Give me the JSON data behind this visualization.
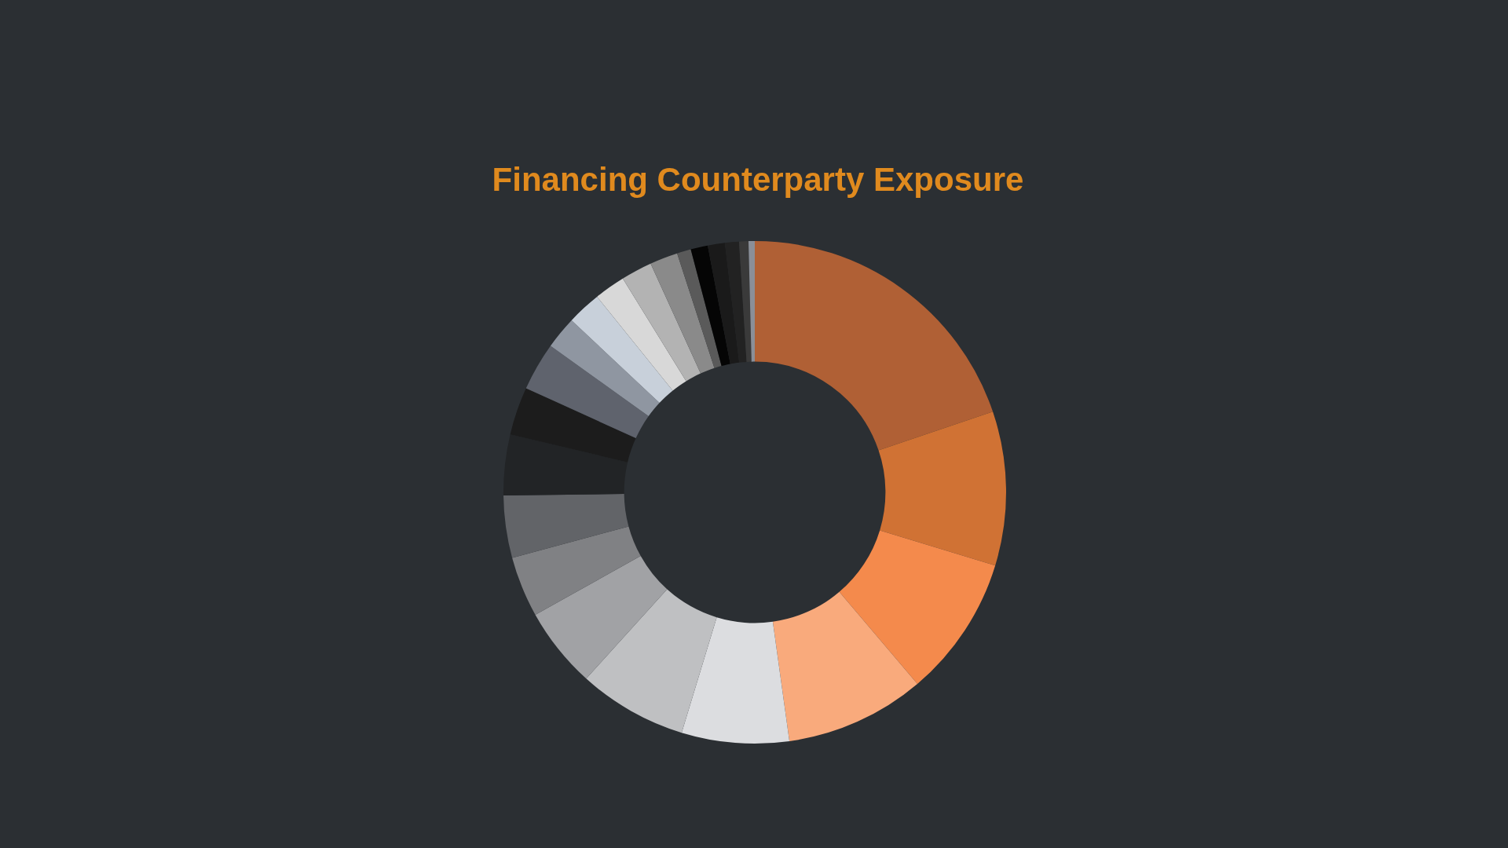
{
  "chart_data": {
    "type": "donut",
    "title": "Financing Counterparty Exposure",
    "categories": [
      null,
      null,
      null,
      null,
      null,
      null,
      null,
      null,
      null,
      null,
      null,
      null,
      null,
      null,
      null,
      null,
      null,
      null,
      null,
      null,
      null,
      null,
      null
    ],
    "values": [
      19.8,
      9.9,
      9.1,
      9.0,
      6.9,
      7.0,
      5.2,
      3.9,
      4.0,
      3.9,
      3.1,
      3.1,
      2.1,
      2.2,
      2.0,
      2.0,
      1.8,
      0.9,
      1.1,
      1.1,
      0.9,
      0.6,
      0.4
    ],
    "colors": [
      "#b06035",
      "#d07234",
      "#f48a4c",
      "#f9aa7c",
      "#dcdde0",
      "#bfc0c2",
      "#a1a2a5",
      "#808184",
      "#626468",
      "#222426",
      "#1c1c1c",
      "#5f636d",
      "#8f96a1",
      "#c8d0da",
      "#d8d8d8",
      "#b3b3b3",
      "#8a8a8a",
      "#5a5a5a",
      "#050505",
      "#1a1a1a",
      "#222222",
      "#3a3a3a",
      "#8a8f98"
    ]
  }
}
